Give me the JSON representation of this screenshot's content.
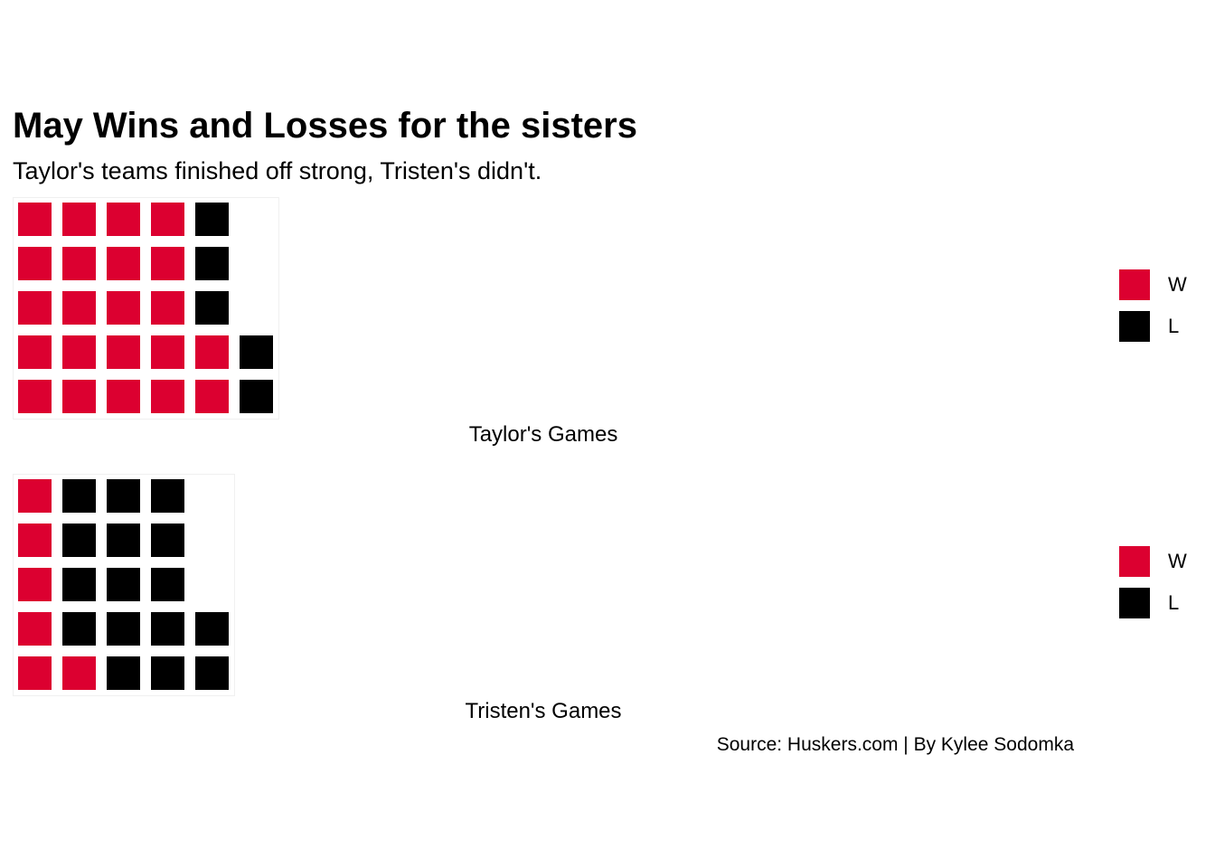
{
  "colors": {
    "win": "#dc0030",
    "loss": "#000000",
    "background": "#ffffff"
  },
  "title": "May Wins and Losses for the sisters",
  "subtitle": "Taylor's teams finished off strong, Tristen's didn't.",
  "source": "Source: Huskers.com | By Kylee Sodomka",
  "legend": {
    "items": [
      {
        "key": "W",
        "label": "W"
      },
      {
        "key": "L",
        "label": "L"
      }
    ]
  },
  "chart_data": [
    {
      "type": "waffle",
      "caption": "Taylor's Games",
      "rows": 5,
      "fill_order": "column-wise, bottom to top",
      "categories": [
        "W",
        "L"
      ],
      "values": [
        22,
        5
      ],
      "legend_position": "right"
    },
    {
      "type": "waffle",
      "caption": "Tristen's Games",
      "rows": 5,
      "fill_order": "column-wise, bottom to top",
      "categories": [
        "W",
        "L"
      ],
      "values": [
        6,
        16
      ],
      "legend_position": "right"
    }
  ]
}
